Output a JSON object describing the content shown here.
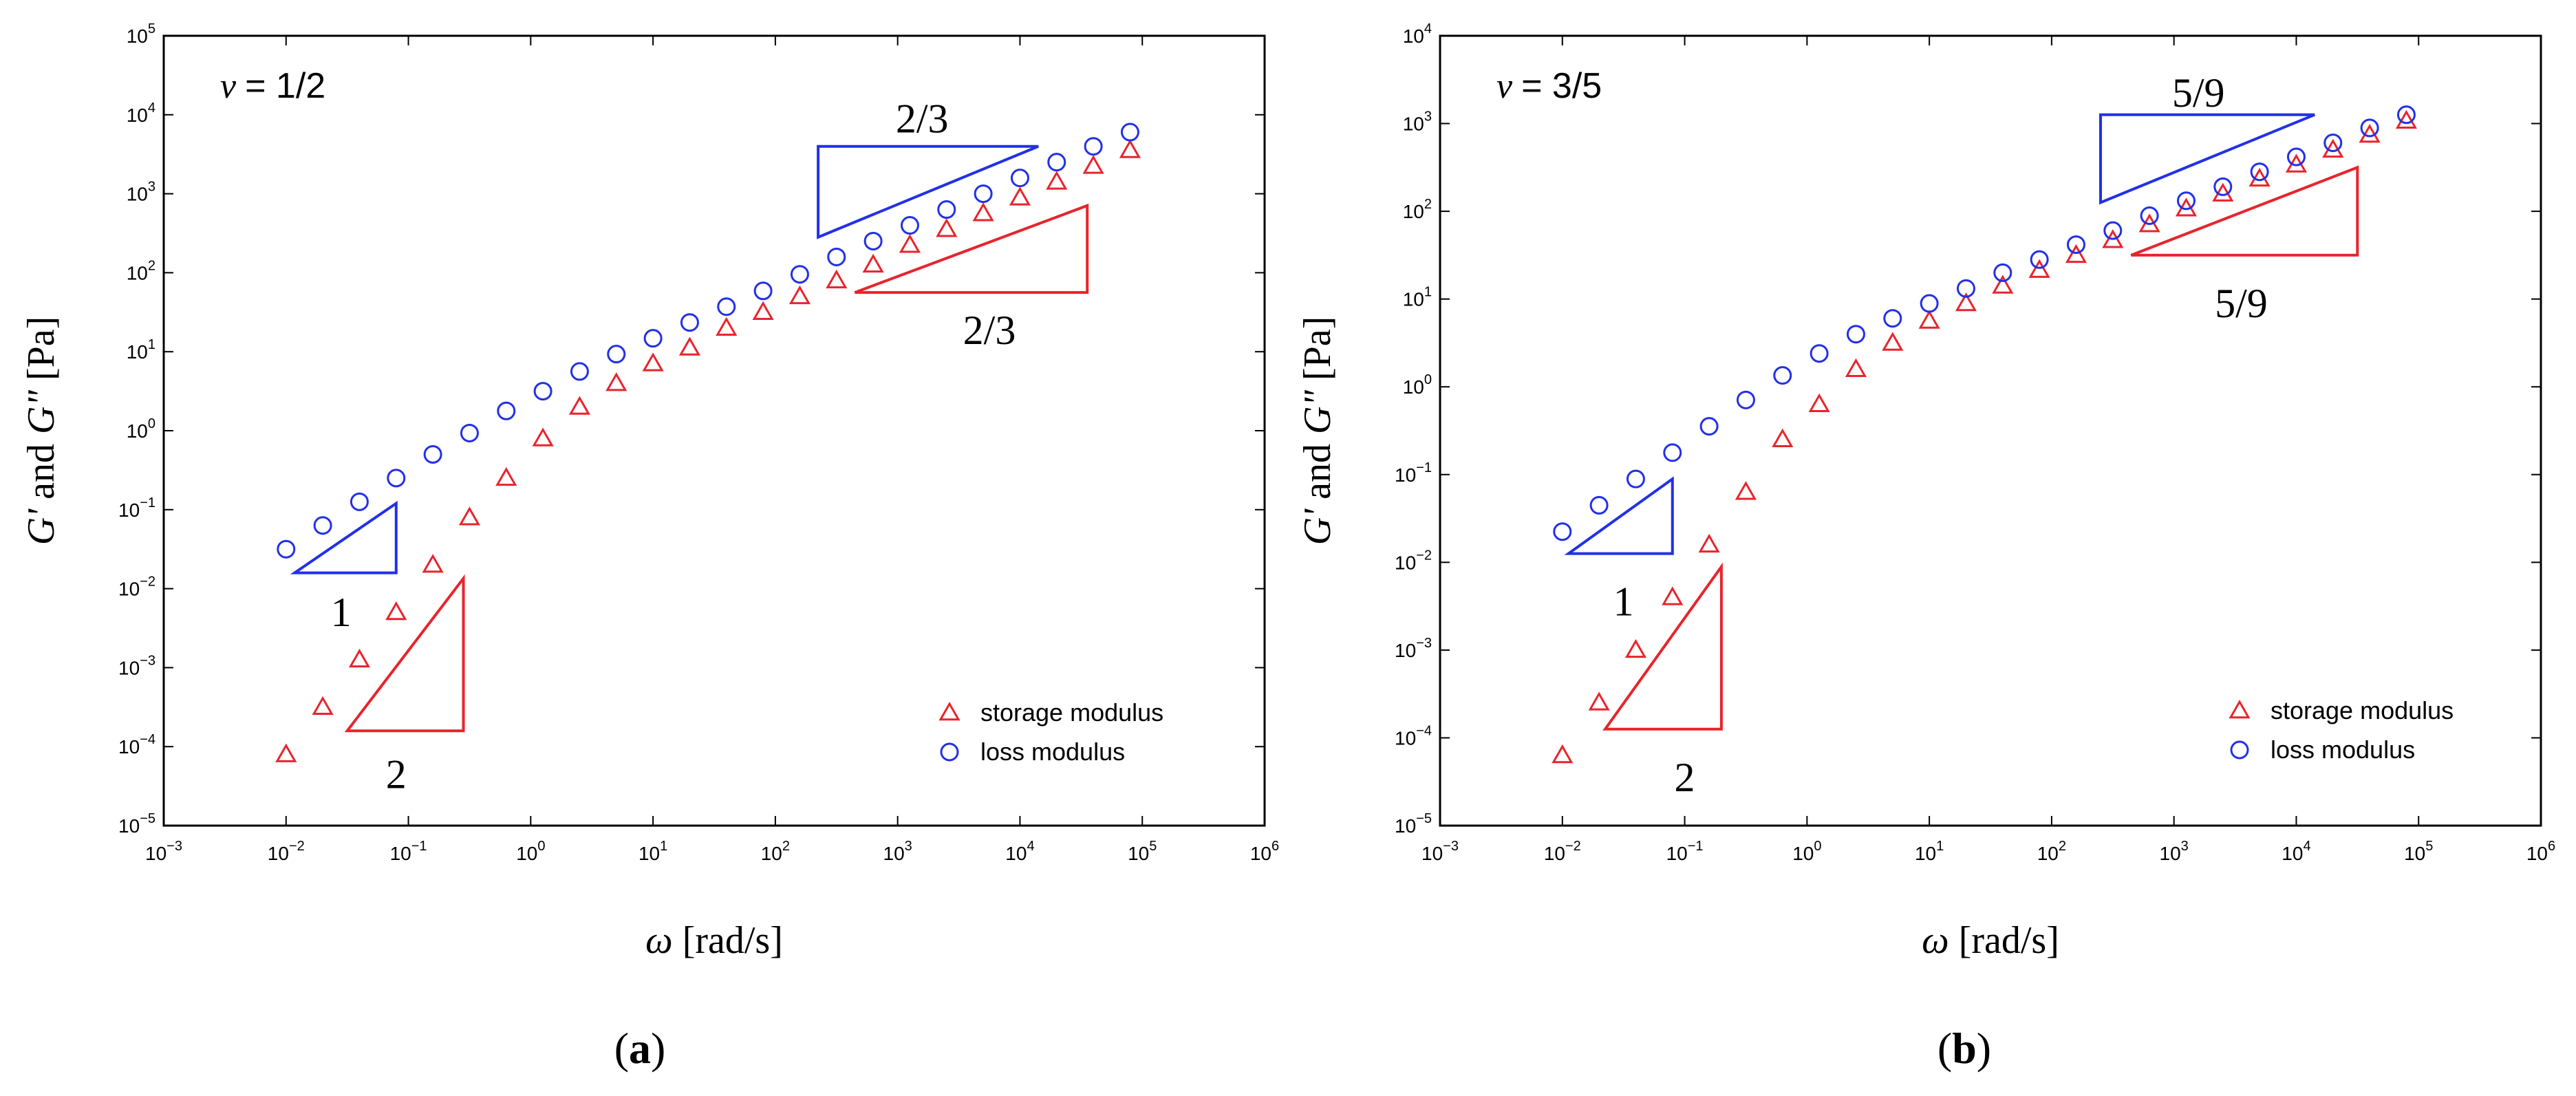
{
  "chart_data": [
    {
      "panel_label": "(a)",
      "nu_text": "= 1/2",
      "type": "scatter",
      "xscale": "log",
      "yscale": "log",
      "xlim_exp": [
        -3,
        6
      ],
      "ylim_exp": [
        -5,
        5
      ],
      "xlabel": "[rad/s]",
      "ylabel": "[Pa]",
      "xticks_exp": [
        -3,
        -2,
        -1,
        0,
        1,
        2,
        3,
        4,
        5,
        6
      ],
      "yticks_exp": [
        -5,
        -4,
        -3,
        -2,
        -1,
        0,
        1,
        2,
        3,
        4,
        5
      ],
      "legend": {
        "position": "bottom-right",
        "entries": [
          {
            "label": "storage modulus",
            "marker": "triangle",
            "color": "#e8242c"
          },
          {
            "label": "loss modulus",
            "marker": "circle",
            "color": "#2230e8"
          }
        ]
      },
      "series": [
        {
          "name": "storage modulus",
          "marker": "triangle",
          "color": "#e8242c",
          "points": [
            [
              -2.0,
              -4.1
            ],
            [
              -1.7,
              -3.5
            ],
            [
              -1.4,
              -2.9
            ],
            [
              -1.1,
              -2.3
            ],
            [
              -0.8,
              -1.7
            ],
            [
              -0.5,
              -1.1
            ],
            [
              -0.2,
              -0.6
            ],
            [
              0.1,
              -0.1
            ],
            [
              0.4,
              0.3
            ],
            [
              0.7,
              0.6
            ],
            [
              1.0,
              0.85
            ],
            [
              1.3,
              1.05
            ],
            [
              1.6,
              1.3
            ],
            [
              1.9,
              1.5
            ],
            [
              2.2,
              1.7
            ],
            [
              2.5,
              1.9
            ],
            [
              2.8,
              2.1
            ],
            [
              3.1,
              2.35
            ],
            [
              3.4,
              2.55
            ],
            [
              3.7,
              2.75
            ],
            [
              4.0,
              2.95
            ],
            [
              4.3,
              3.15
            ],
            [
              4.6,
              3.35
            ],
            [
              4.9,
              3.55
            ]
          ]
        },
        {
          "name": "loss modulus",
          "marker": "circle",
          "color": "#2230e8",
          "points": [
            [
              -2.0,
              -1.5
            ],
            [
              -1.7,
              -1.2
            ],
            [
              -1.4,
              -0.9
            ],
            [
              -1.1,
              -0.6
            ],
            [
              -0.8,
              -0.3
            ],
            [
              -0.5,
              -0.03
            ],
            [
              -0.2,
              0.25
            ],
            [
              0.1,
              0.5
            ],
            [
              0.4,
              0.75
            ],
            [
              0.7,
              0.97
            ],
            [
              1.0,
              1.17
            ],
            [
              1.3,
              1.37
            ],
            [
              1.6,
              1.57
            ],
            [
              1.9,
              1.77
            ],
            [
              2.2,
              1.98
            ],
            [
              2.5,
              2.2
            ],
            [
              2.8,
              2.4
            ],
            [
              3.1,
              2.6
            ],
            [
              3.4,
              2.8
            ],
            [
              3.7,
              3.0
            ],
            [
              4.0,
              3.2
            ],
            [
              4.3,
              3.4
            ],
            [
              4.6,
              3.6
            ],
            [
              4.9,
              3.78
            ]
          ]
        }
      ],
      "slope_triangles": [
        {
          "label": "1",
          "color": "#2230e8",
          "vertices": [
            [
              -1.93,
              -1.8
            ],
            [
              -1.1,
              -1.8
            ],
            [
              -1.1,
              -0.92
            ]
          ],
          "label_pos": [
            -1.55,
            -2.3
          ]
        },
        {
          "label": "2",
          "color": "#e8242c",
          "vertices": [
            [
              -1.5,
              -3.8
            ],
            [
              -0.55,
              -3.8
            ],
            [
              -0.55,
              -1.87
            ]
          ],
          "label_pos": [
            -1.1,
            -4.35
          ]
        },
        {
          "label": "2/3",
          "color": "#2230e8",
          "vertices": [
            [
              2.35,
              2.45
            ],
            [
              4.15,
              3.6
            ],
            [
              2.35,
              3.6
            ]
          ],
          "label_pos": [
            3.2,
            3.95
          ]
        },
        {
          "label": "2/3",
          "color": "#e8242c",
          "vertices": [
            [
              2.65,
              1.75
            ],
            [
              4.55,
              1.75
            ],
            [
              4.55,
              2.85
            ]
          ],
          "label_pos": [
            3.75,
            1.27
          ]
        }
      ]
    },
    {
      "panel_label": "(b)",
      "nu_text": "= 3/5",
      "type": "scatter",
      "xscale": "log",
      "yscale": "log",
      "xlim_exp": [
        -3,
        6
      ],
      "ylim_exp": [
        -5,
        4
      ],
      "xlabel": "[rad/s]",
      "ylabel": "[Pa]",
      "xticks_exp": [
        -3,
        -2,
        -1,
        0,
        1,
        2,
        3,
        4,
        5,
        6
      ],
      "yticks_exp": [
        -5,
        -4,
        -3,
        -2,
        -1,
        0,
        1,
        2,
        3,
        4
      ],
      "legend": {
        "position": "bottom-right",
        "entries": [
          {
            "label": "storage modulus",
            "marker": "triangle",
            "color": "#e8242c"
          },
          {
            "label": "loss modulus",
            "marker": "circle",
            "color": "#2230e8"
          }
        ]
      },
      "series": [
        {
          "name": "storage modulus",
          "marker": "triangle",
          "color": "#e8242c",
          "points": [
            [
              -2.0,
              -4.2
            ],
            [
              -1.7,
              -3.6
            ],
            [
              -1.4,
              -3.0
            ],
            [
              -1.1,
              -2.4
            ],
            [
              -0.8,
              -1.8
            ],
            [
              -0.5,
              -1.2
            ],
            [
              -0.2,
              -0.6
            ],
            [
              0.1,
              -0.2
            ],
            [
              0.4,
              0.2
            ],
            [
              0.7,
              0.5
            ],
            [
              1.0,
              0.75
            ],
            [
              1.3,
              0.95
            ],
            [
              1.6,
              1.15
            ],
            [
              1.9,
              1.33
            ],
            [
              2.2,
              1.5
            ],
            [
              2.5,
              1.67
            ],
            [
              2.8,
              1.85
            ],
            [
              3.1,
              2.03
            ],
            [
              3.4,
              2.2
            ],
            [
              3.7,
              2.37
            ],
            [
              4.0,
              2.53
            ],
            [
              4.3,
              2.7
            ],
            [
              4.6,
              2.87
            ],
            [
              4.9,
              3.03
            ]
          ]
        },
        {
          "name": "loss modulus",
          "marker": "circle",
          "color": "#2230e8",
          "points": [
            [
              -2.0,
              -1.65
            ],
            [
              -1.7,
              -1.35
            ],
            [
              -1.4,
              -1.05
            ],
            [
              -1.1,
              -0.75
            ],
            [
              -0.8,
              -0.45
            ],
            [
              -0.5,
              -0.15
            ],
            [
              -0.2,
              0.13
            ],
            [
              0.1,
              0.38
            ],
            [
              0.4,
              0.6
            ],
            [
              0.7,
              0.78
            ],
            [
              1.0,
              0.95
            ],
            [
              1.3,
              1.12
            ],
            [
              1.6,
              1.3
            ],
            [
              1.9,
              1.45
            ],
            [
              2.2,
              1.62
            ],
            [
              2.5,
              1.78
            ],
            [
              2.8,
              1.95
            ],
            [
              3.1,
              2.12
            ],
            [
              3.4,
              2.28
            ],
            [
              3.7,
              2.45
            ],
            [
              4.0,
              2.62
            ],
            [
              4.3,
              2.78
            ],
            [
              4.6,
              2.95
            ],
            [
              4.9,
              3.1
            ]
          ]
        }
      ],
      "slope_triangles": [
        {
          "label": "1",
          "color": "#2230e8",
          "vertices": [
            [
              -1.95,
              -1.9
            ],
            [
              -1.1,
              -1.9
            ],
            [
              -1.1,
              -1.05
            ]
          ],
          "label_pos": [
            -1.5,
            -2.45
          ]
        },
        {
          "label": "2",
          "color": "#e8242c",
          "vertices": [
            [
              -1.65,
              -3.9
            ],
            [
              -0.7,
              -3.9
            ],
            [
              -0.7,
              -2.05
            ]
          ],
          "label_pos": [
            -1.0,
            -4.45
          ]
        },
        {
          "label": "5/9",
          "color": "#2230e8",
          "vertices": [
            [
              2.4,
              2.1
            ],
            [
              4.15,
              3.1
            ],
            [
              2.4,
              3.1
            ]
          ],
          "label_pos": [
            3.2,
            3.35
          ]
        },
        {
          "label": "5/9",
          "color": "#e8242c",
          "vertices": [
            [
              2.65,
              1.5
            ],
            [
              4.5,
              1.5
            ],
            [
              4.5,
              2.5
            ]
          ],
          "label_pos": [
            3.55,
            0.95
          ]
        }
      ]
    }
  ]
}
